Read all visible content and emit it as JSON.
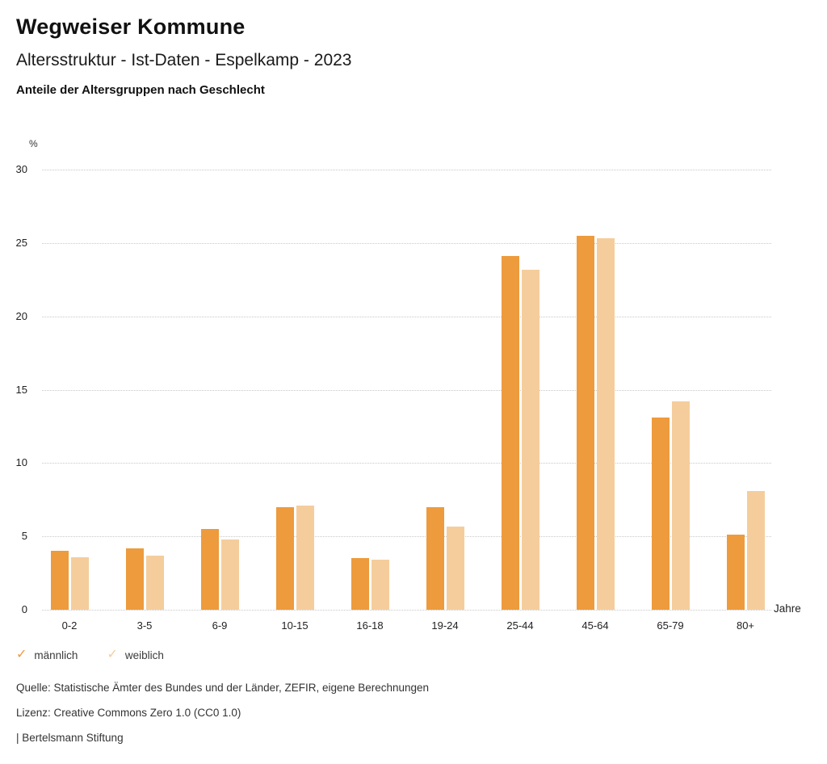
{
  "header": {
    "title": "Wegweiser Kommune",
    "subtitle": "Altersstruktur - Ist-Daten - Espelkamp - 2023",
    "subsubtitle": "Anteile der Altersgruppen nach Geschlecht"
  },
  "chart_data": {
    "type": "bar",
    "title": "Anteile der Altersgruppen nach Geschlecht",
    "unit_label": "%",
    "x_axis_label": "Jahre",
    "categories": [
      "0-2",
      "3-5",
      "6-9",
      "10-15",
      "16-18",
      "19-24",
      "25-44",
      "45-64",
      "65-79",
      "80+"
    ],
    "series": [
      {
        "name": "männlich",
        "color": "#ED9B3D",
        "values": [
          4.0,
          4.2,
          5.5,
          7.0,
          3.5,
          7.0,
          24.1,
          25.5,
          13.1,
          5.1
        ]
      },
      {
        "name": "weiblich",
        "color": "#F5CD9C",
        "values": [
          3.6,
          3.7,
          4.8,
          7.1,
          3.4,
          5.7,
          23.2,
          25.3,
          14.2,
          8.1
        ]
      }
    ],
    "y_ticks": [
      0,
      5,
      10,
      15,
      20,
      25,
      30
    ],
    "ylim": [
      0,
      30
    ],
    "grid": "horizontal-dotted",
    "gridline_color": "#c8c8c8",
    "legend_position": "bottom-left"
  },
  "legend": {
    "items": [
      {
        "label": "männlich",
        "color": "#ED9B3D",
        "icon": "check"
      },
      {
        "label": "weiblich",
        "color": "#F5CD9C",
        "icon": "check"
      }
    ]
  },
  "footer": {
    "source": "Quelle: Statistische Ämter des Bundes und der Länder, ZEFIR, eigene Berechnungen",
    "license": "Lizenz: Creative Commons Zero 1.0 (CC0 1.0)",
    "attribution": "| Bertelsmann Stiftung"
  }
}
